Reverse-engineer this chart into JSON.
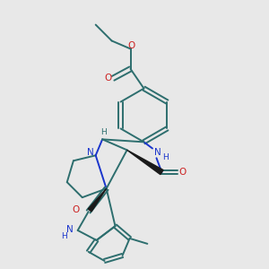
{
  "background_color": "#e8e8e8",
  "bond_color": "#2d6e6e",
  "nitrogen_color": "#1a35cc",
  "oxygen_color": "#cc2020",
  "stereo_color": "#1a1a1a",
  "figsize": [
    3.0,
    3.0
  ],
  "dpi": 100,
  "lw": 1.4,
  "xlim": [
    0,
    10
  ],
  "ylim": [
    0,
    10
  ]
}
